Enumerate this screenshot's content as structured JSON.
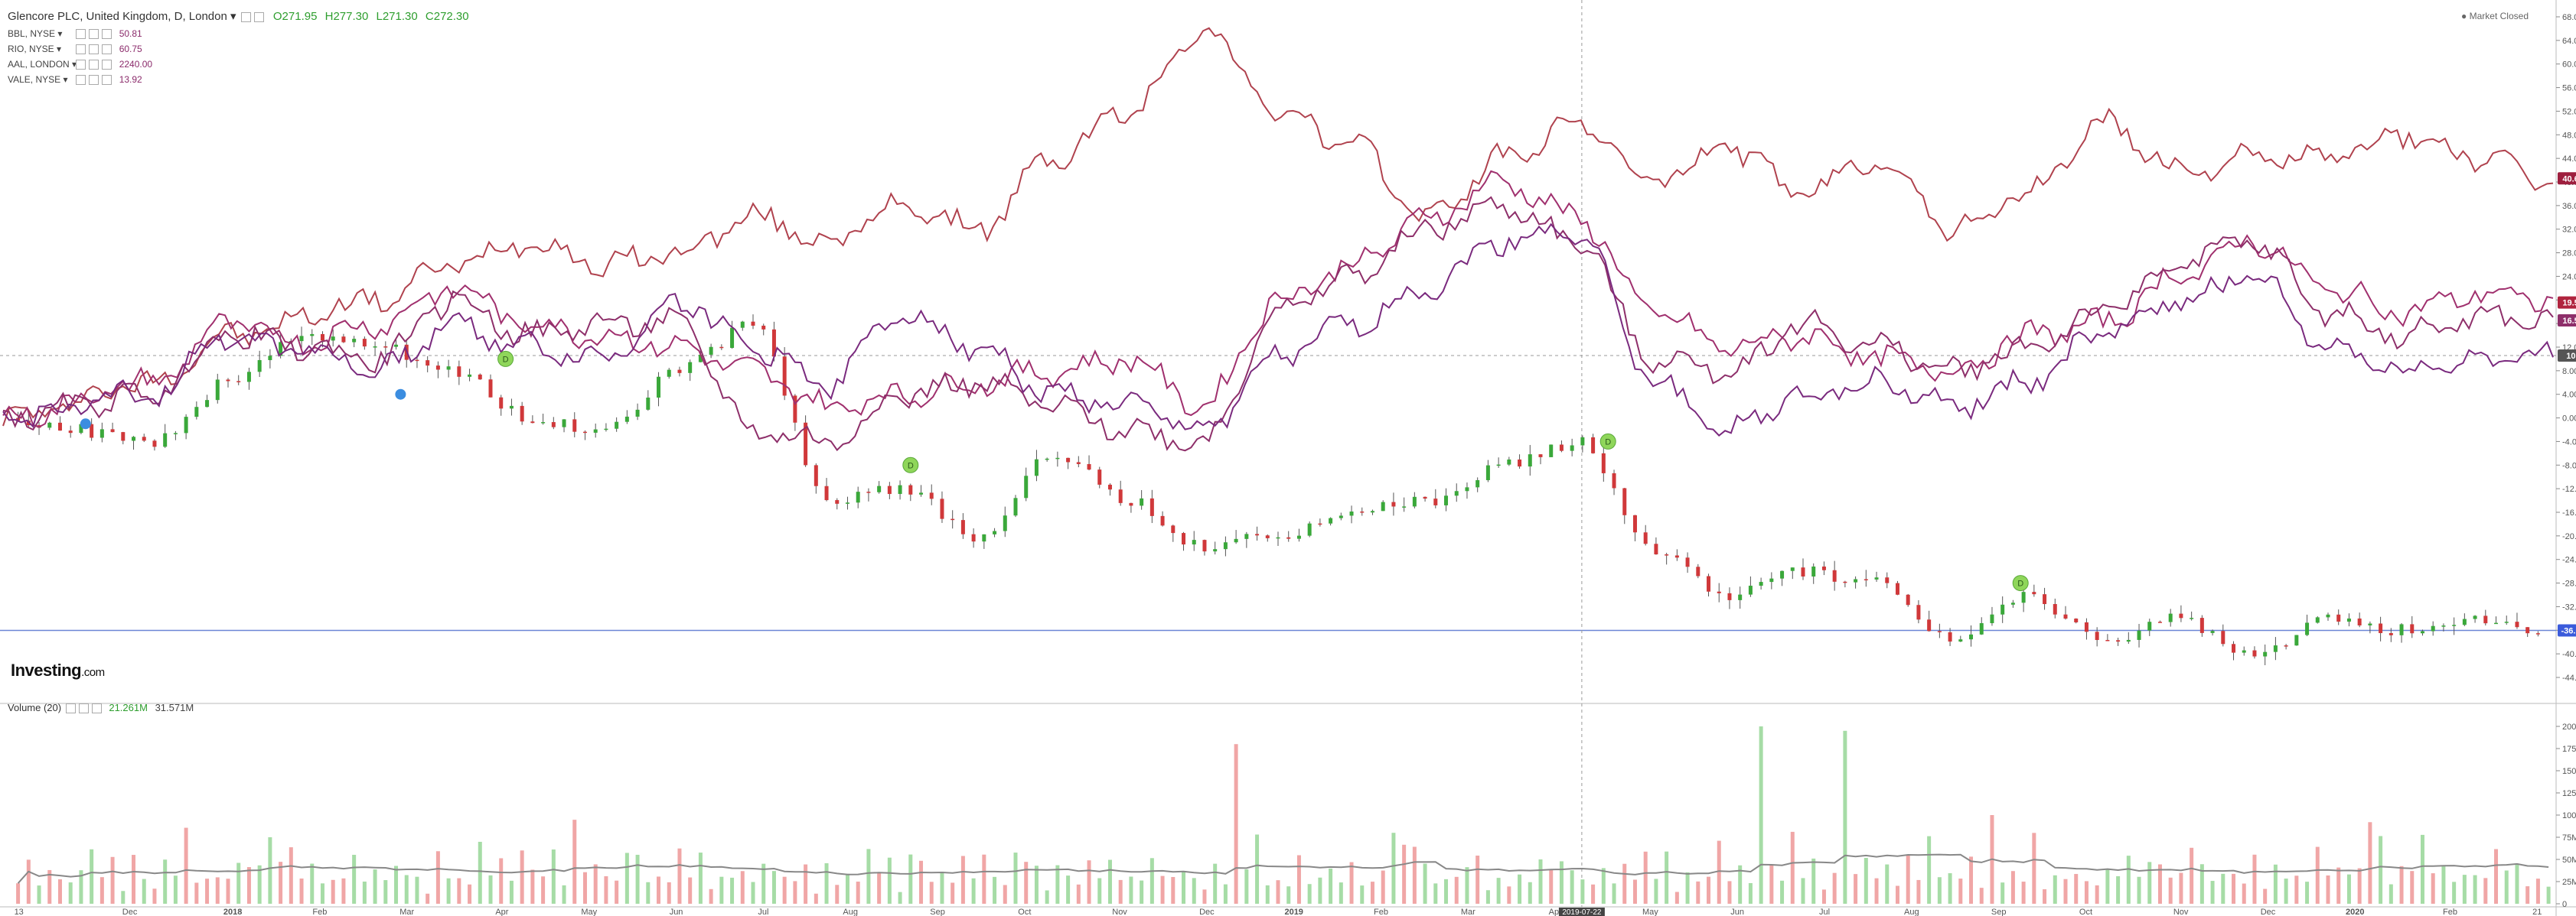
{
  "instrument": {
    "title": "Glencore PLC, United Kingdom, D, London",
    "open": "O271.95",
    "high": "H277.30",
    "low": "L271.30",
    "close": "C272.30"
  },
  "comparisons": [
    {
      "name": "BBL, NYSE",
      "value": "50.81",
      "color": "#8e2f6a"
    },
    {
      "name": "RIO, NYSE",
      "value": "60.75",
      "color": "#b0424e"
    },
    {
      "name": "AAL, LONDON",
      "value": "2240.00",
      "color": "#a0306e"
    },
    {
      "name": "VALE, NYSE",
      "value": "13.92",
      "color": "#7a2a7e"
    }
  ],
  "market_status": "Market Closed",
  "logo": {
    "text": "Investing",
    "suffix": ".com"
  },
  "volume": {
    "label": "Volume (20)",
    "value": "21.261M",
    "average": "31.571M"
  },
  "chart_data": [
    {
      "type": "line",
      "title": "Glencore PLC, United Kingdom, D, London",
      "y_unit": "percent change",
      "ylim": [
        -44,
        68
      ],
      "y_ticks": [
        "68.00%",
        "64.00%",
        "60.00%",
        "56.00%",
        "52.00%",
        "48.00%",
        "44.00%",
        "40.00%",
        "36.00%",
        "32.00%",
        "28.00%",
        "24.00%",
        "20.00%",
        "16.00%",
        "12.00%",
        "8.00%",
        "4.00%",
        "0.00%",
        "-4.00%",
        "-8.00%",
        "-12.00%",
        "-16.00%",
        "-20.00%",
        "-24.00%",
        "-28.00%",
        "-32.00%",
        "-36.00%",
        "-40.00%",
        "-44.00%"
      ],
      "x_ticks": [
        "13",
        "Dec",
        "2018",
        "Feb",
        "Mar",
        "Apr",
        "May",
        "Jun",
        "Jul",
        "Aug",
        "Sep",
        "Oct",
        "Nov",
        "Dec",
        "2019",
        "Feb",
        "Mar",
        "Apr",
        "May",
        "Jun",
        "Jul",
        "Aug",
        "Sep",
        "Oct",
        "Nov",
        "Dec",
        "2020",
        "Feb",
        "21"
      ],
      "crosshair_date": "2019-07-22",
      "last_value_labels": [
        {
          "text": "40.61%",
          "value": 40.61,
          "color": "#9e1f3e"
        },
        {
          "text": "19.56%",
          "value": 19.56,
          "color": "#b0243e"
        },
        {
          "text": "16.53%",
          "value": 16.53,
          "color": "#8e2f6a"
        },
        {
          "text": "10.58",
          "value": 10.58,
          "color": "#555555"
        },
        {
          "text": "-36.02%",
          "value": -36.02,
          "color": "#3b5bdb"
        }
      ],
      "series": [
        {
          "name": "RIO, NYSE",
          "color": "#b0424e",
          "anchors": [
            [
              0,
              0
            ],
            [
              2,
              6
            ],
            [
              3,
              14
            ],
            [
              5,
              20
            ],
            [
              6,
              26
            ],
            [
              7,
              30
            ],
            [
              8,
              26
            ],
            [
              9,
              28
            ],
            [
              10,
              34
            ],
            [
              11,
              30
            ],
            [
              12,
              36
            ],
            [
              13,
              32
            ],
            [
              14,
              44
            ],
            [
              15,
              52
            ],
            [
              16,
              66
            ],
            [
              17,
              52
            ],
            [
              18,
              46
            ],
            [
              19,
              34
            ],
            [
              20,
              44
            ],
            [
              21,
              50
            ],
            [
              22,
              40
            ],
            [
              23,
              46
            ],
            [
              24,
              38
            ],
            [
              25,
              44
            ],
            [
              26,
              32
            ],
            [
              27,
              38
            ],
            [
              28,
              50
            ],
            [
              29,
              42
            ],
            [
              30,
              44
            ],
            [
              31,
              44
            ],
            [
              32,
              48
            ],
            [
              33,
              44
            ],
            [
              34,
              40
            ]
          ]
        },
        {
          "name": "AAL, LONDON",
          "color": "#a0306e",
          "anchors": [
            [
              0,
              0
            ],
            [
              2,
              6
            ],
            [
              3,
              16
            ],
            [
              4,
              13
            ],
            [
              5,
              16
            ],
            [
              6,
              22
            ],
            [
              7,
              16
            ],
            [
              8,
              14
            ],
            [
              9,
              12
            ],
            [
              10,
              8
            ],
            [
              11,
              2
            ],
            [
              12,
              4
            ],
            [
              13,
              6
            ],
            [
              14,
              8
            ],
            [
              15,
              10
            ],
            [
              16,
              2
            ],
            [
              17,
              20
            ],
            [
              18,
              26
            ],
            [
              19,
              34
            ],
            [
              20,
              40
            ],
            [
              21,
              34
            ],
            [
              22,
              18
            ],
            [
              23,
              12
            ],
            [
              24,
              14
            ],
            [
              25,
              10
            ],
            [
              26,
              8
            ],
            [
              27,
              14
            ],
            [
              28,
              16
            ],
            [
              29,
              24
            ],
            [
              30,
              30
            ],
            [
              31,
              22
            ],
            [
              32,
              18
            ],
            [
              33,
              21
            ],
            [
              34,
              20
            ]
          ]
        },
        {
          "name": "BBL, NYSE",
          "color": "#8e2f6a",
          "anchors": [
            [
              0,
              0
            ],
            [
              2,
              4
            ],
            [
              3,
              14
            ],
            [
              4,
              12
            ],
            [
              5,
              10
            ],
            [
              6,
              20
            ],
            [
              7,
              14
            ],
            [
              8,
              16
            ],
            [
              9,
              16
            ],
            [
              10,
              -2
            ],
            [
              11,
              -4
            ],
            [
              12,
              4
            ],
            [
              13,
              6
            ],
            [
              14,
              2
            ],
            [
              15,
              -2
            ],
            [
              16,
              -4
            ],
            [
              17,
              18
            ],
            [
              18,
              24
            ],
            [
              19,
              32
            ],
            [
              20,
              36
            ],
            [
              21,
              30
            ],
            [
              22,
              10
            ],
            [
              23,
              8
            ],
            [
              24,
              16
            ],
            [
              25,
              12
            ],
            [
              26,
              8
            ],
            [
              27,
              12
            ],
            [
              28,
              18
            ],
            [
              29,
              26
            ],
            [
              30,
              30
            ],
            [
              31,
              18
            ],
            [
              32,
              14
            ],
            [
              33,
              17
            ],
            [
              34,
              16.5
            ]
          ]
        },
        {
          "name": "VALE, NYSE",
          "color": "#7a2a7e",
          "anchors": [
            [
              0,
              0
            ],
            [
              2,
              4
            ],
            [
              3,
              14
            ],
            [
              4,
              12
            ],
            [
              5,
              8
            ],
            [
              6,
              16
            ],
            [
              7,
              12
            ],
            [
              8,
              10
            ],
            [
              9,
              20
            ],
            [
              10,
              12
            ],
            [
              11,
              6
            ],
            [
              12,
              18
            ],
            [
              13,
              12
            ],
            [
              14,
              4
            ],
            [
              15,
              2
            ],
            [
              16,
              -2
            ],
            [
              17,
              10
            ],
            [
              18,
              16
            ],
            [
              19,
              22
            ],
            [
              20,
              30
            ],
            [
              21,
              32
            ],
            [
              22,
              6
            ],
            [
              23,
              -2
            ],
            [
              24,
              4
            ],
            [
              25,
              6
            ],
            [
              26,
              2
            ],
            [
              27,
              6
            ],
            [
              28,
              14
            ],
            [
              29,
              20
            ],
            [
              30,
              24
            ],
            [
              31,
              12
            ],
            [
              32,
              8
            ],
            [
              33,
              10
            ],
            [
              34,
              10.5
            ]
          ]
        }
      ],
      "main_series": {
        "name": "Glencore PLC",
        "anchors": [
          [
            0,
            0
          ],
          [
            2,
            -4
          ],
          [
            3,
            6
          ],
          [
            4,
            14
          ],
          [
            5,
            12
          ],
          [
            6,
            8
          ],
          [
            7,
            0
          ],
          [
            8,
            -2
          ],
          [
            9,
            8
          ],
          [
            10,
            16
          ],
          [
            11,
            -14
          ],
          [
            12,
            -12
          ],
          [
            13,
            -20
          ],
          [
            14,
            -6
          ],
          [
            15,
            -14
          ],
          [
            16,
            -22
          ],
          [
            17,
            -20
          ],
          [
            18,
            -16
          ],
          [
            19,
            -14
          ],
          [
            20,
            -8
          ],
          [
            21,
            -4
          ],
          [
            22,
            -22
          ],
          [
            23,
            -30
          ],
          [
            24,
            -26
          ],
          [
            25,
            -28
          ],
          [
            26,
            -38
          ],
          [
            27,
            -30
          ],
          [
            28,
            -38
          ],
          [
            29,
            -34
          ],
          [
            30,
            -40
          ],
          [
            31,
            -34
          ],
          [
            32,
            -36
          ],
          [
            33,
            -34
          ],
          [
            34,
            -36
          ]
        ]
      },
      "dividend_markers": [
        {
          "text": "D",
          "approx_date": "May 2018"
        },
        {
          "text": "D",
          "approx_date": "Sep 2018"
        },
        {
          "text": "D",
          "approx_date": "Apr 2019"
        },
        {
          "text": "D",
          "approx_date": "Sep 2019"
        }
      ]
    },
    {
      "type": "bar",
      "title": "Volume (20)",
      "ylim": [
        0,
        200
      ],
      "y_unit": "M",
      "y_ticks": [
        "200M",
        "175M",
        "150M",
        "125M",
        "100M",
        "75M",
        "50M",
        "25M",
        "0"
      ],
      "bars_per_slot": 12,
      "pattern_m": [
        28,
        40,
        18,
        55,
        22,
        34,
        30,
        62,
        26,
        44,
        20,
        48,
        36,
        24,
        52,
        30,
        70,
        28,
        40,
        32,
        26,
        58,
        46,
        38,
        22,
        34,
        50,
        30,
        42,
        24,
        36,
        28,
        44,
        20,
        56,
        32,
        38
      ],
      "spikes_m": [
        {
          "slot": 16,
          "value": 180,
          "up": false
        },
        {
          "slot": 3,
          "value": 75,
          "up": true
        },
        {
          "slot": 18,
          "value": 80,
          "up": true
        },
        {
          "slot": 23,
          "value": 200,
          "up": true
        },
        {
          "slot": 24,
          "value": 195,
          "up": true
        },
        {
          "slot": 26,
          "value": 100,
          "up": false
        },
        {
          "slot": 31,
          "value": 92,
          "up": false
        }
      ]
    }
  ]
}
